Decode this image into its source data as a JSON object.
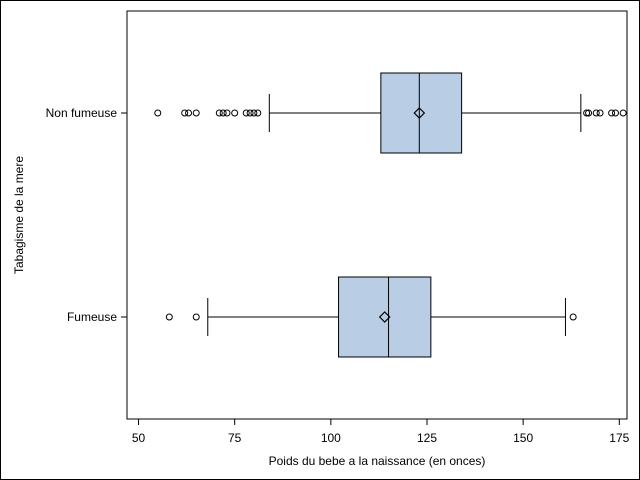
{
  "chart_data": {
    "type": "boxplot",
    "orientation": "horizontal",
    "xlabel": "Poids du bebe a la naissance (en onces)",
    "ylabel": "Tabagisme de la mere",
    "xlim": [
      47,
      177
    ],
    "xticks": [
      "50",
      "75",
      "100",
      "125",
      "150",
      "175"
    ],
    "box_fill": "#b9cde5",
    "series": [
      {
        "name": "Non fumeuse",
        "whisker_low": 84,
        "q1": 113,
        "median": 123,
        "q3": 134,
        "whisker_high": 165,
        "mean": 123,
        "outliers": [
          55,
          62,
          63,
          65,
          71,
          72,
          73,
          75,
          78,
          79,
          80,
          81,
          166.5,
          167,
          169,
          170,
          173,
          174,
          176
        ]
      },
      {
        "name": "Fumeuse",
        "whisker_low": 68,
        "q1": 102,
        "median": 115,
        "q3": 126,
        "whisker_high": 161,
        "mean": 114,
        "outliers": [
          58,
          65,
          163
        ]
      }
    ]
  }
}
